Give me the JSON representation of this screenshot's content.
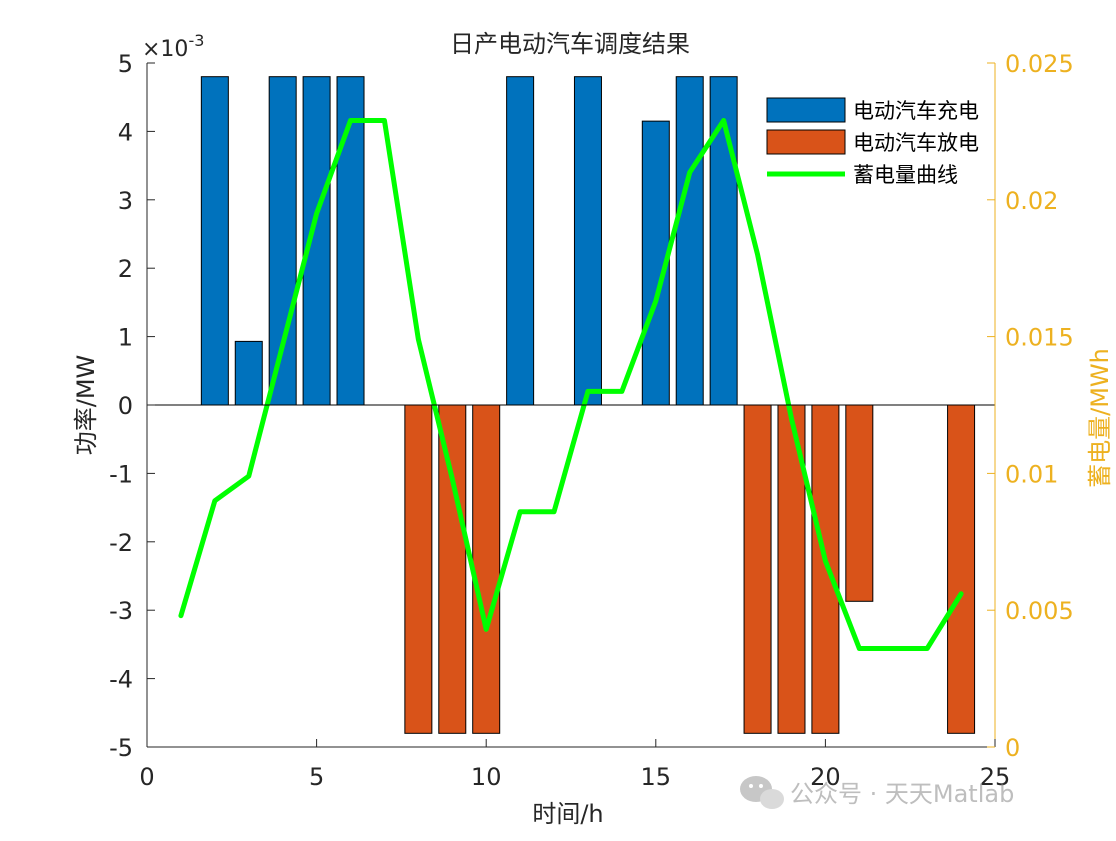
{
  "chart_data": {
    "type": "bar",
    "title": "日产电动汽车调度结果",
    "xlabel": "时间/h",
    "ylabel_left": "功率/MW",
    "ylabel_right": "蓄电量/MWh",
    "left_exponent_label": "×10",
    "left_exponent_power": "-3",
    "xlim": [
      0,
      25
    ],
    "ylim_left": [
      -5,
      5
    ],
    "ylim_right": [
      0,
      0.025
    ],
    "x_ticks": [
      0,
      5,
      10,
      15,
      20,
      25
    ],
    "x_tick_labels": [
      "0",
      "5",
      "10",
      "15",
      "20",
      "25"
    ],
    "left_ticks": [
      5,
      4,
      3,
      2,
      1,
      0,
      -1,
      -2,
      -3,
      -4,
      -5
    ],
    "left_tick_labels": [
      "5",
      "4",
      "3",
      "2",
      "1",
      "0",
      "-1",
      "-2",
      "-3",
      "-4",
      "-5"
    ],
    "right_ticks": [
      0.025,
      0.02,
      0.015,
      0.01,
      0.005,
      0
    ],
    "right_tick_labels": [
      "0.025",
      "0.02",
      "0.015",
      "0.01",
      "0.005",
      "0"
    ],
    "right_axis_color": "#EDB120",
    "grid": false,
    "legend_position": "top-right",
    "series": [
      {
        "name": "电动汽车充电",
        "kind": "bar",
        "color": "#0072BD",
        "x": [
          2,
          3,
          4,
          5,
          6,
          11,
          13,
          15,
          16,
          17
        ],
        "values": [
          4.8,
          0.93,
          4.8,
          4.8,
          4.8,
          4.8,
          4.8,
          4.15,
          4.8,
          4.8
        ]
      },
      {
        "name": "电动汽车放电",
        "kind": "bar",
        "color": "#D95319",
        "x": [
          8,
          9,
          10,
          18,
          19,
          20,
          21,
          24
        ],
        "values": [
          -4.8,
          -4.8,
          -4.8,
          -4.8,
          -4.8,
          -4.8,
          -2.87,
          -4.8
        ]
      },
      {
        "name": "蓄电量曲线",
        "kind": "line",
        "axis": "right",
        "color": "#00FF00",
        "x": [
          1,
          2,
          3,
          4,
          5,
          6,
          7,
          8,
          9,
          10,
          11,
          12,
          13,
          14,
          15,
          16,
          17,
          18,
          19,
          20,
          21,
          22,
          23,
          24
        ],
        "values": [
          0.0048,
          0.009,
          0.0099,
          0.0147,
          0.0195,
          0.0229,
          0.0229,
          0.0149,
          0.0098,
          0.0043,
          0.0086,
          0.0086,
          0.013,
          0.013,
          0.0163,
          0.021,
          0.0229,
          0.018,
          0.012,
          0.0068,
          0.0036,
          0.0036,
          0.0036,
          0.0056
        ]
      }
    ]
  },
  "watermark": {
    "text": "公众号 · 天天Matlab"
  }
}
